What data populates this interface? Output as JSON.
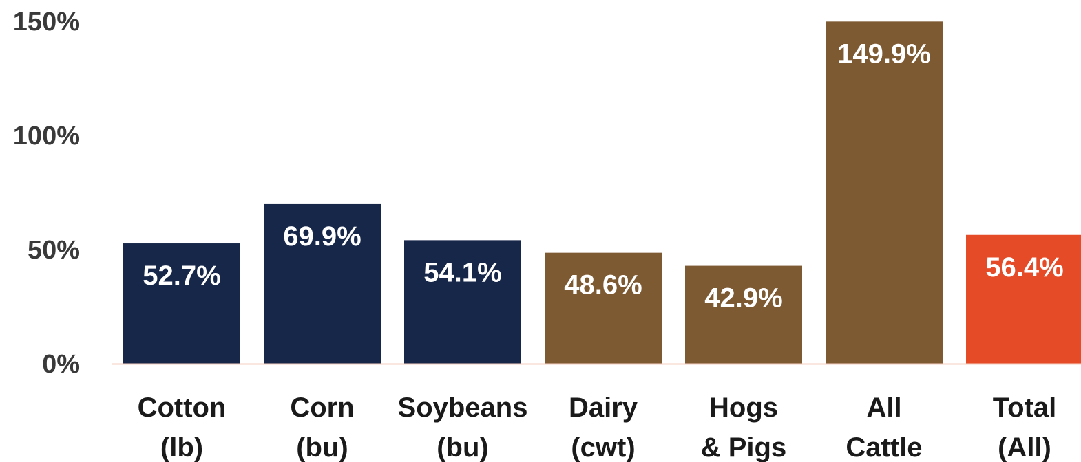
{
  "chart_data": {
    "type": "bar",
    "title": "",
    "xlabel": "",
    "ylabel": "",
    "ylim": [
      0,
      150
    ],
    "yticks": [
      0,
      50,
      100,
      150
    ],
    "ytick_labels": [
      "0%",
      "50%",
      "100%",
      "150%"
    ],
    "grid": false,
    "legend": "none",
    "categories": [
      [
        "Cotton",
        "(lb)"
      ],
      [
        "Corn",
        "(bu)"
      ],
      [
        "Soybeans",
        "(bu)"
      ],
      [
        "Dairy",
        "(cwt)"
      ],
      [
        "Hogs",
        "& Pigs"
      ],
      [
        "All",
        "Cattle"
      ],
      [
        "Total",
        "(All)"
      ]
    ],
    "values": [
      52.7,
      69.9,
      54.1,
      48.6,
      42.9,
      149.9,
      56.4
    ],
    "data_labels": [
      "52.7%",
      "69.9%",
      "54.1%",
      "48.6%",
      "42.9%",
      "149.9%",
      "56.4%"
    ],
    "colors": [
      "#172749",
      "#172749",
      "#172749",
      "#7e5a33",
      "#7e5a33",
      "#7e5a33",
      "#e54b27"
    ],
    "axis_color": "#f4cfc0"
  }
}
